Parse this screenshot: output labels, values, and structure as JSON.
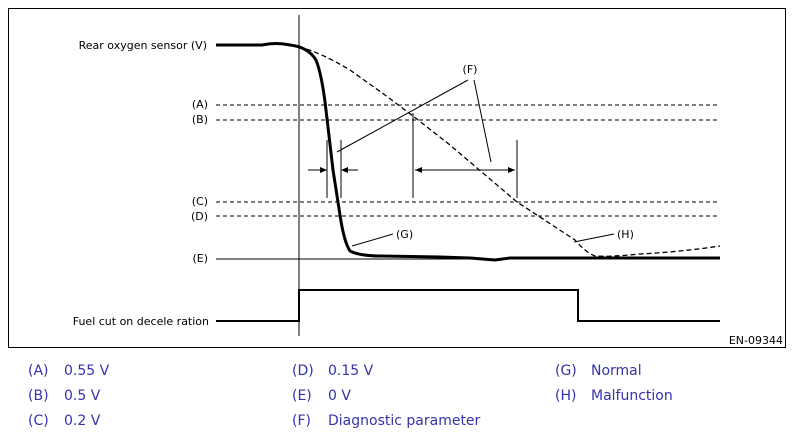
{
  "figure": {
    "labels": {
      "rear_sensor": "Rear oxygen sensor (V)",
      "fuel_cut": "Fuel cut on decele ration",
      "A": "(A)",
      "B": "(B)",
      "C": "(C)",
      "D": "(D)",
      "E": "(E)",
      "F": "(F)",
      "G": "(G)",
      "H": "(H)",
      "code": "EN-09344"
    },
    "colors": {
      "line": "#000000",
      "legend_text": "#3333aa"
    }
  },
  "legend": [
    {
      "key": "(A)",
      "value": "0.55 V"
    },
    {
      "key": "(B)",
      "value": "0.5 V"
    },
    {
      "key": "(C)",
      "value": "0.2 V"
    },
    {
      "key": "(D)",
      "value": "0.15 V"
    },
    {
      "key": "(E)",
      "value": "0 V"
    },
    {
      "key": "(F)",
      "value": "Diagnostic parameter"
    },
    {
      "key": "(G)",
      "value": "Normal"
    },
    {
      "key": "(H)",
      "value": "Malfunction"
    }
  ]
}
